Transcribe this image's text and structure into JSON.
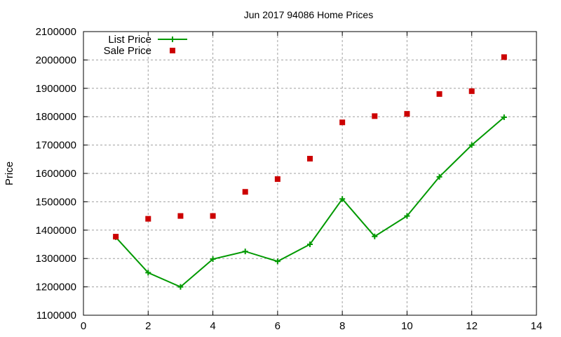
{
  "chart_data": {
    "type": "line",
    "title": "Jun 2017 94086 Home Prices",
    "xlabel": "",
    "ylabel": "Price",
    "xlim": [
      0,
      14
    ],
    "ylim": [
      1100000,
      2100000
    ],
    "xticks": [
      0,
      2,
      4,
      6,
      8,
      10,
      12,
      14
    ],
    "yticks": [
      1100000,
      1200000,
      1300000,
      1400000,
      1500000,
      1600000,
      1700000,
      1800000,
      1900000,
      2000000,
      2100000
    ],
    "grid": true,
    "legend_position": "top-left",
    "x": [
      1,
      2,
      3,
      4,
      5,
      6,
      7,
      8,
      9,
      10,
      11,
      12,
      13
    ],
    "series": [
      {
        "name": "List Price",
        "style": "linespoints",
        "marker": "plus",
        "color": "#009900",
        "values": [
          1375000,
          1250000,
          1200000,
          1298000,
          1325000,
          1290000,
          1350000,
          1510000,
          1378000,
          1450000,
          1588000,
          1700000,
          1798000
        ]
      },
      {
        "name": "Sale Price",
        "style": "points",
        "marker": "square",
        "color": "#cc0000",
        "values": [
          1377000,
          1440000,
          1450000,
          1450000,
          1535000,
          1580000,
          1652000,
          1780000,
          1802000,
          1810000,
          1880000,
          1890000,
          2010000
        ]
      }
    ]
  }
}
